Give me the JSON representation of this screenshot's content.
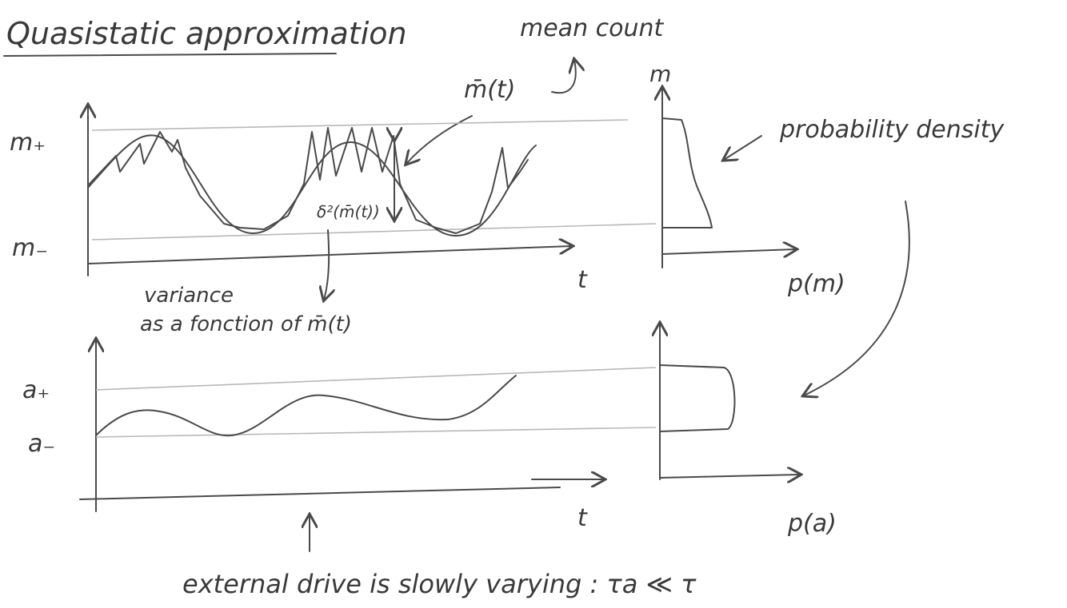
{
  "header": {
    "title": "Quasistatic approximation",
    "note": "mean count"
  },
  "top_panel": {
    "mean_label": "m̄(t)",
    "y_label": "m",
    "upper_label": "m₊",
    "lower_label": "m₋",
    "x_label": "t",
    "variance_symbol": "δ²(m̄(t))",
    "variance_note": [
      "variance",
      "as a fonction of m̄(t)"
    ],
    "density_label": "p(m)"
  },
  "density_note": "probability density",
  "bottom_panel": {
    "upper_label": "a₊",
    "lower_label": "a₋",
    "x_label": "t",
    "density_label": "p(a)"
  },
  "footer": "external drive is slowly varying : τa ≪ τ"
}
